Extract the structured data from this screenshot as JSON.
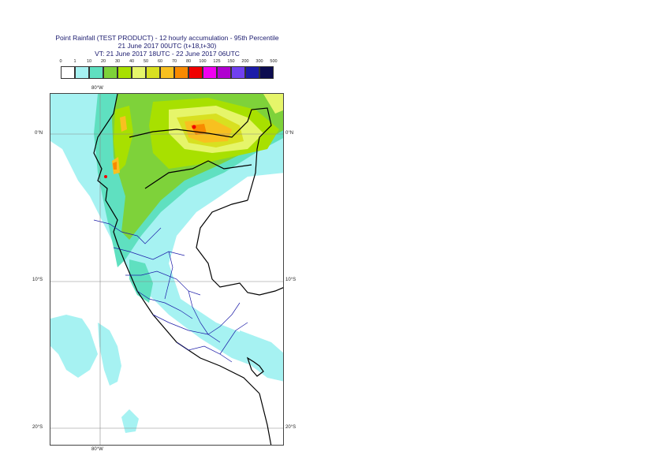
{
  "title": {
    "line1": "Point Rainfall (TEST PRODUCT) - 12 hourly accumulation - 95th Percentile",
    "line2": "21 June 2017 00UTC (t+18,t+30)",
    "line3": "VT: 21 June 2017 18UTC - 22 June 2017 06UTC"
  },
  "legend": {
    "thresholds": [
      "0",
      "1",
      "10",
      "20",
      "30",
      "40",
      "50",
      "60",
      "70",
      "80",
      "100",
      "125",
      "150",
      "200",
      "300",
      "500"
    ],
    "colors": [
      "#ffffff",
      "#a6f2f2",
      "#5fe0c0",
      "#7ed23a",
      "#a8e000",
      "#e6f56a",
      "#d8e020",
      "#f8c020",
      "#f88a00",
      "#f00000",
      "#f000f0",
      "#b000d0",
      "#7040f0",
      "#1c1ca8",
      "#0c0c50"
    ]
  },
  "map": {
    "lon_label_top": "80°W",
    "lon_label_bottom": "80°W",
    "lat_labels": [
      {
        "left": "0°N",
        "right": "0°N"
      },
      {
        "left": "10°S",
        "right": "10°S"
      },
      {
        "left": "20°S",
        "right": "20°S"
      }
    ]
  }
}
